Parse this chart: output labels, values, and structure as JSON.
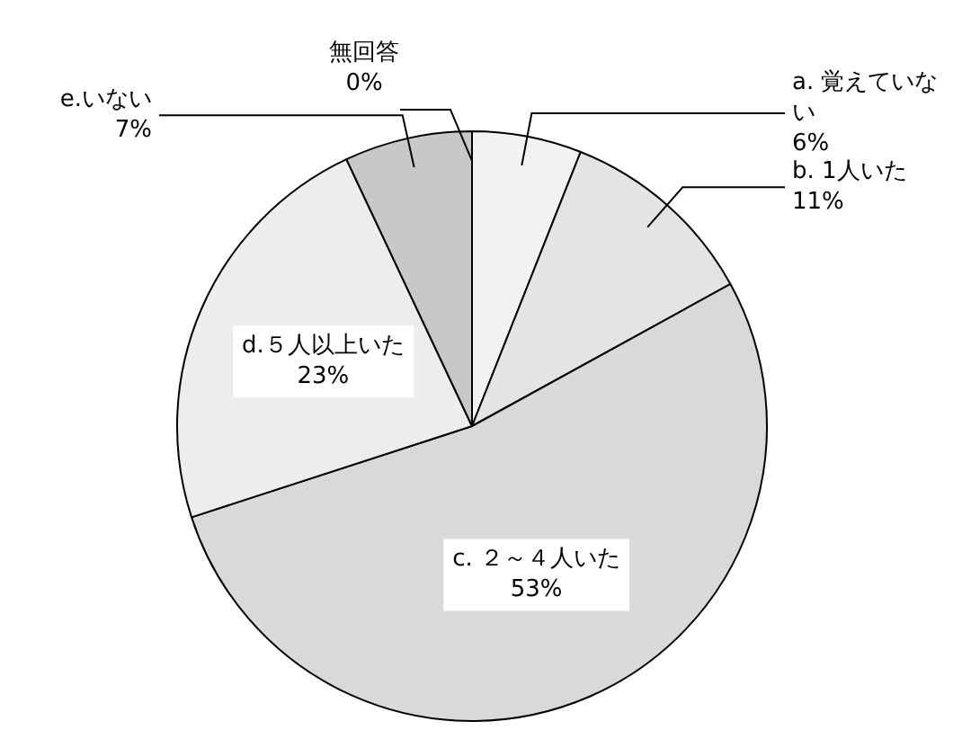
{
  "chart_data": {
    "type": "pie",
    "categories": [
      "a. 覚えていない",
      "b. 1人いた",
      "c. ２～４人いた",
      "d.５人以上いた",
      "e.いない",
      "無回答"
    ],
    "values": [
      6,
      11,
      53,
      23,
      7,
      0
    ],
    "value_labels": [
      "6%",
      "11%",
      "53%",
      "23%",
      "7%",
      "0%"
    ],
    "colors": [
      "#f2f2f2",
      "#e4e4e4",
      "#d9d9d9",
      "#ededed",
      "#c8c8c8",
      "#ffffff"
    ],
    "legend": false
  }
}
